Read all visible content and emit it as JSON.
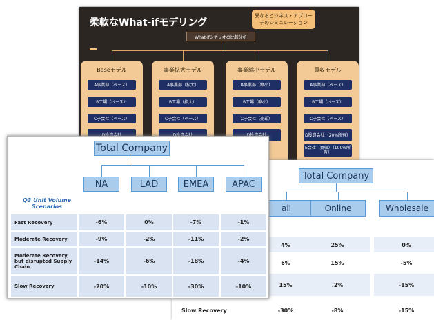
{
  "slide_back": {
    "title": "柔軟なWhat-ifモデリング",
    "callout": "異なるビジネス・アプローチのシミュレーション",
    "root": "What-ifシナリオの比較分析",
    "columns": [
      {
        "label": "Baseモデル",
        "items": [
          "A事業部（ベース）",
          "B工場（ベース）",
          "C子会社（ベース）",
          "D投資会社"
        ]
      },
      {
        "label": "事業拡大モデル",
        "items": [
          "A事業部（拡大）",
          "B工場（拡大）",
          "C子会社（ベース）",
          "D投資会社"
        ]
      },
      {
        "label": "事業縮小モデル",
        "items": [
          "A事業部（縮小）",
          "B工場（縮小）",
          "C子会社（売却）",
          "D投資会社"
        ]
      },
      {
        "label": "買収モデル",
        "items": [
          "A事業部（ベース）",
          "B工場（ベース）",
          "C子会社（ベース）",
          "D投資会社（20%所有）",
          "E会社（買収）（100%所有）"
        ]
      }
    ]
  },
  "slide_right": {
    "root": "Total Company",
    "channels": [
      "ail",
      "Online",
      "Wholesale"
    ],
    "rows": [
      {
        "label": null,
        "values": [
          "4%",
          "25%",
          "0%"
        ]
      },
      {
        "label": null,
        "values": [
          "6%",
          "15%",
          "-5%"
        ]
      },
      {
        "label": null,
        "values": [
          "15%",
          ".2%",
          "-15%"
        ]
      },
      {
        "label": "Slow Recovery",
        "values": [
          "-30%",
          "-8%",
          "-15%"
        ]
      }
    ]
  },
  "slide_front": {
    "root": "Total Company",
    "regions": [
      "NA",
      "LAD",
      "EMEA",
      "APAC"
    ],
    "caption": "Q3 Unit Volume Scenarios",
    "rows": [
      {
        "label": "Fast Recovery",
        "values": [
          "-6%",
          "0%",
          "-7%",
          "-1%"
        ]
      },
      {
        "label": "Moderate  Recovery",
        "values": [
          "-9%",
          "-2%",
          "-11%",
          "-2%"
        ]
      },
      {
        "label": "Moderate Recovery, but disrupted Supply Chain",
        "values": [
          "-14%",
          "-6%",
          "-18%",
          "-4%"
        ]
      },
      {
        "label": "Slow  Recovery",
        "values": [
          "-20%",
          "-10%",
          "-30%",
          "-10%"
        ]
      }
    ]
  }
}
